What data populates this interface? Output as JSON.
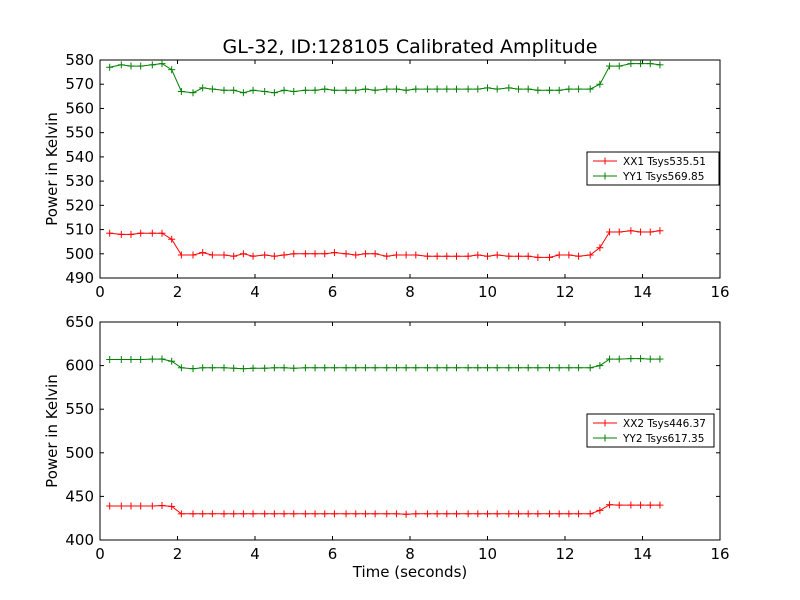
{
  "chart_data": [
    {
      "type": "line",
      "title": "GL-32, ID:128105 Calibrated Amplitude",
      "xlabel": "",
      "ylabel": "Power in Kelvin",
      "xlim": [
        0,
        16
      ],
      "ylim": [
        490,
        580
      ],
      "xticks": [
        "0",
        "2",
        "4",
        "6",
        "8",
        "10",
        "12",
        "14",
        "16"
      ],
      "yticks": [
        "490",
        "500",
        "510",
        "520",
        "530",
        "540",
        "550",
        "560",
        "570",
        "580"
      ],
      "grid": false,
      "legend_position": "center-right",
      "x": [
        0.25,
        0.55,
        0.8,
        1.05,
        1.35,
        1.6,
        1.85,
        2.1,
        2.4,
        2.65,
        2.9,
        3.2,
        3.45,
        3.7,
        3.95,
        4.25,
        4.5,
        4.75,
        5.0,
        5.3,
        5.55,
        5.8,
        6.05,
        6.35,
        6.6,
        6.85,
        7.1,
        7.4,
        7.65,
        7.9,
        8.15,
        8.45,
        8.7,
        8.95,
        9.2,
        9.5,
        9.75,
        10.0,
        10.25,
        10.55,
        10.8,
        11.05,
        11.3,
        11.6,
        11.85,
        12.1,
        12.35,
        12.65,
        12.9,
        13.15,
        13.4,
        13.7,
        13.95,
        14.2,
        14.45
      ],
      "series": [
        {
          "name": "XX1 Tsys535.51",
          "color": "#ff0000",
          "values": [
            508.5,
            508.0,
            508.0,
            508.5,
            508.5,
            508.5,
            506.0,
            499.5,
            499.5,
            500.5,
            499.5,
            499.5,
            499.0,
            500.0,
            499.0,
            499.5,
            499.0,
            499.5,
            500.0,
            500.0,
            500.0,
            500.0,
            500.5,
            500.0,
            499.5,
            500.0,
            500.0,
            499.0,
            499.5,
            499.5,
            499.5,
            499.0,
            499.0,
            499.0,
            499.0,
            499.0,
            499.5,
            499.0,
            499.5,
            499.0,
            499.0,
            499.0,
            498.5,
            498.5,
            499.5,
            499.5,
            499.0,
            499.5,
            502.5,
            509.0,
            509.0,
            509.5,
            509.0,
            509.0,
            509.5
          ]
        },
        {
          "name": "YY1 Tsys569.85",
          "color": "#008000",
          "values": [
            577.0,
            578.0,
            577.5,
            577.5,
            578.0,
            578.5,
            576.0,
            567.0,
            566.5,
            568.5,
            568.0,
            567.5,
            567.5,
            566.5,
            567.5,
            567.0,
            566.5,
            567.5,
            567.0,
            567.5,
            567.5,
            568.0,
            567.5,
            567.5,
            567.5,
            568.0,
            567.5,
            568.0,
            568.0,
            567.5,
            568.0,
            568.0,
            568.0,
            568.0,
            568.0,
            568.0,
            568.0,
            568.5,
            568.0,
            568.5,
            568.0,
            568.0,
            567.5,
            567.5,
            567.5,
            568.0,
            568.0,
            568.0,
            570.0,
            577.5,
            577.5,
            578.5,
            578.5,
            578.5,
            578.0
          ]
        }
      ]
    },
    {
      "type": "line",
      "title": "",
      "xlabel": "Time (seconds)",
      "ylabel": "Power in Kelvin",
      "xlim": [
        0,
        16
      ],
      "ylim": [
        400,
        650
      ],
      "xticks": [
        "0",
        "2",
        "4",
        "6",
        "8",
        "10",
        "12",
        "14",
        "16"
      ],
      "yticks": [
        "400",
        "450",
        "500",
        "550",
        "600",
        "650"
      ],
      "grid": false,
      "legend_position": "center-right",
      "x": [
        0.25,
        0.55,
        0.8,
        1.05,
        1.35,
        1.6,
        1.85,
        2.1,
        2.4,
        2.65,
        2.9,
        3.2,
        3.45,
        3.7,
        3.95,
        4.25,
        4.5,
        4.75,
        5.0,
        5.3,
        5.55,
        5.8,
        6.05,
        6.35,
        6.6,
        6.85,
        7.1,
        7.4,
        7.65,
        7.9,
        8.15,
        8.45,
        8.7,
        8.95,
        9.2,
        9.5,
        9.75,
        10.0,
        10.25,
        10.55,
        10.8,
        11.05,
        11.3,
        11.6,
        11.85,
        12.1,
        12.35,
        12.65,
        12.9,
        13.15,
        13.4,
        13.7,
        13.95,
        14.2,
        14.45
      ],
      "series": [
        {
          "name": "XX2 Tsys446.37",
          "color": "#ff0000",
          "values": [
            439.0,
            439.0,
            439.0,
            439.0,
            439.0,
            439.5,
            438.5,
            430.0,
            430.0,
            430.0,
            430.0,
            430.0,
            430.0,
            430.0,
            430.0,
            430.0,
            430.0,
            430.0,
            430.0,
            430.0,
            430.0,
            430.0,
            430.0,
            430.0,
            430.0,
            430.0,
            430.0,
            430.0,
            430.0,
            429.5,
            430.0,
            430.0,
            430.0,
            430.0,
            430.0,
            430.0,
            430.0,
            430.0,
            430.0,
            430.0,
            430.0,
            430.0,
            430.0,
            430.0,
            430.0,
            430.0,
            430.0,
            430.0,
            434.0,
            440.5,
            440.0,
            440.0,
            440.0,
            440.0,
            440.0
          ]
        },
        {
          "name": "YY2 Tsys617.35",
          "color": "#008000",
          "values": [
            607.0,
            607.0,
            607.0,
            607.0,
            607.5,
            607.5,
            605.0,
            597.5,
            596.5,
            597.5,
            597.5,
            597.5,
            597.0,
            596.5,
            597.0,
            597.0,
            597.5,
            597.5,
            597.0,
            597.5,
            597.5,
            597.5,
            597.5,
            597.5,
            597.5,
            597.5,
            597.5,
            597.5,
            597.5,
            597.5,
            597.5,
            597.5,
            597.5,
            597.5,
            597.5,
            597.5,
            597.5,
            597.5,
            597.5,
            597.5,
            597.5,
            597.5,
            597.5,
            597.5,
            597.5,
            597.5,
            597.5,
            597.5,
            600.0,
            607.5,
            607.5,
            608.0,
            608.0,
            607.5,
            607.5
          ]
        }
      ]
    }
  ]
}
